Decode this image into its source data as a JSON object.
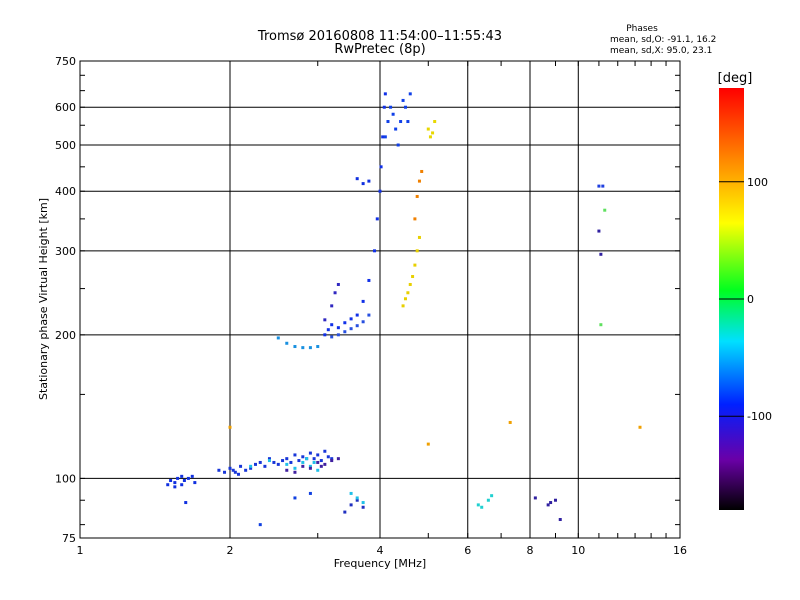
{
  "chart_data": {
    "type": "scatter",
    "title": "Tromsø 20160808 11:54:00–11:55:43",
    "subtitle": "RwPretec (8p)",
    "xlabel": "Frequency [MHz]",
    "ylabel": "Stationary phase Virtual Height [km]",
    "x_scale": "log",
    "y_scale": "log",
    "xlim": [
      1,
      16
    ],
    "ylim": [
      75,
      750
    ],
    "x_ticks": [
      1,
      2,
      4,
      6,
      8,
      10,
      16
    ],
    "y_ticks": [
      75,
      100,
      200,
      300,
      400,
      500,
      600,
      750
    ],
    "grid": true,
    "stats": {
      "heading": "Phases",
      "line_o": "mean, sd,O: -91.1, 16.2",
      "line_x": "mean, sd,X:  95.0, 23.1"
    },
    "colorbar": {
      "label": "[deg]",
      "range": [
        -180,
        180
      ],
      "ticks": [
        100,
        0,
        -100
      ]
    },
    "series": [
      {
        "x": [
          1.5,
          1.52,
          1.55,
          1.57,
          1.6,
          1.62,
          1.65,
          1.68,
          1.7,
          1.55,
          1.6,
          1.63
        ],
        "y": [
          97,
          99,
          98,
          100,
          101,
          99,
          100,
          101,
          98,
          96,
          97,
          89
        ],
        "color": "#1030e0"
      },
      {
        "x": [
          1.9,
          1.95,
          2.0,
          2.03,
          2.05,
          2.08,
          2.1,
          2.15,
          2.2,
          2.25,
          2.3,
          2.35,
          2.4,
          2.45,
          2.5,
          2.55,
          2.6,
          2.65,
          2.7,
          2.75,
          2.8,
          2.85,
          2.9,
          2.95,
          3.0,
          3.05,
          3.1,
          3.15,
          3.2
        ],
        "y": [
          104,
          103,
          105,
          104,
          103,
          102,
          106,
          104,
          105,
          107,
          108,
          106,
          110,
          108,
          107,
          109,
          110,
          108,
          112,
          109,
          111,
          110,
          113,
          110,
          112,
          109,
          114,
          111,
          110
        ],
        "color": "#1836d8"
      },
      {
        "x": [
          2.2,
          2.4,
          2.6,
          2.7,
          2.8,
          2.9,
          3.0,
          2.85,
          2.95
        ],
        "y": [
          106,
          109,
          107,
          105,
          108,
          106,
          104,
          110,
          108
        ],
        "color": "#20c0e8"
      },
      {
        "x": [
          2.6,
          2.7,
          2.8,
          2.9,
          3.0,
          3.05,
          3.1,
          3.2,
          3.3
        ],
        "y": [
          104,
          103,
          106,
          105,
          108,
          106,
          107,
          109,
          110
        ],
        "color": "#4020a0"
      },
      {
        "x": [
          2.5,
          2.6,
          2.7,
          2.8,
          2.9,
          3.0
        ],
        "y": [
          197,
          192,
          189,
          188,
          188,
          189
        ],
        "color": "#1890e0"
      },
      {
        "x": [
          3.1,
          3.15,
          3.2,
          3.3,
          3.4,
          3.5,
          3.6,
          3.7,
          3.8,
          3.9,
          3.95,
          4.0,
          4.02,
          4.05,
          4.08,
          4.1
        ],
        "y": [
          200,
          205,
          210,
          207,
          212,
          216,
          220,
          235,
          260,
          300,
          350,
          400,
          450,
          520,
          600,
          640
        ],
        "color": "#1030e8"
      },
      {
        "x": [
          3.2,
          3.3,
          3.4,
          3.5,
          3.6,
          3.7,
          3.8
        ],
        "y": [
          198,
          200,
          203,
          206,
          209,
          213,
          220
        ],
        "color": "#2850e0"
      },
      {
        "x": [
          3.1,
          3.2,
          3.25,
          3.3
        ],
        "y": [
          215,
          230,
          245,
          255
        ],
        "color": "#3028c0"
      },
      {
        "x": [
          3.6,
          3.7,
          3.8
        ],
        "y": [
          425,
          415,
          420
        ],
        "color": "#1030e0"
      },
      {
        "x": [
          4.1,
          4.15,
          4.2,
          4.25,
          4.3,
          4.35,
          4.4,
          4.45,
          4.5,
          4.55,
          4.6
        ],
        "y": [
          520,
          560,
          600,
          580,
          540,
          500,
          560,
          620,
          600,
          560,
          640
        ],
        "color": "#1040e8"
      },
      {
        "x": [
          4.45,
          4.5,
          4.55,
          4.6,
          4.65,
          4.7,
          4.75,
          4.8
        ],
        "y": [
          230,
          238,
          245,
          255,
          265,
          280,
          300,
          320
        ],
        "color": "#e8d000"
      },
      {
        "x": [
          4.7,
          4.75,
          4.8,
          4.85
        ],
        "y": [
          350,
          390,
          420,
          440
        ],
        "color": "#f08000"
      },
      {
        "x": [
          5.0,
          5.05,
          5.1,
          5.15
        ],
        "y": [
          540,
          520,
          530,
          560
        ],
        "color": "#e8d800"
      },
      {
        "x": [
          3.4,
          3.5,
          3.6,
          3.7
        ],
        "y": [
          85,
          88,
          90,
          87
        ],
        "color": "#2030c0"
      },
      {
        "x": [
          3.5,
          3.6,
          3.7
        ],
        "y": [
          93,
          91,
          89
        ],
        "color": "#20c0e8"
      },
      {
        "x": [
          6.3,
          6.4,
          6.6,
          6.7
        ],
        "y": [
          88,
          87,
          90,
          92
        ],
        "color": "#20d0d0"
      },
      {
        "x": [
          8.2,
          8.7,
          8.8,
          9.0,
          9.2
        ],
        "y": [
          91,
          88,
          89,
          90,
          82
        ],
        "color": "#3020a0"
      },
      {
        "x": [
          11.0,
          11.2
        ],
        "y": [
          410,
          410
        ],
        "color": "#2040e0"
      },
      {
        "x": [
          11.0,
          11.1
        ],
        "y": [
          330,
          295
        ],
        "color": "#3020a0"
      },
      {
        "x": [
          11.1,
          11.3
        ],
        "y": [
          210,
          365
        ],
        "color": "#60e060"
      },
      {
        "x": [
          13.3,
          7.3,
          5.0,
          2.0
        ],
        "y": [
          128,
          131,
          118,
          128
        ],
        "color": "#f0a000"
      },
      {
        "x": [
          2.3,
          2.7,
          2.9
        ],
        "y": [
          80,
          91,
          93
        ],
        "color": "#1040e0"
      }
    ]
  }
}
